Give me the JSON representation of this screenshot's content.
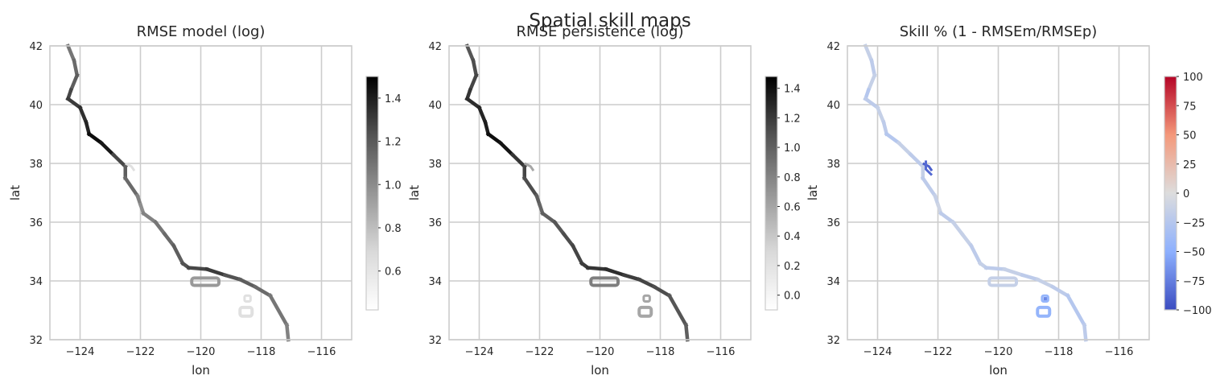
{
  "figure": {
    "title": "Spatial skill maps"
  },
  "chart_data": [
    {
      "type": "heatmap",
      "title": "RMSE model (log)",
      "xlabel": "lon",
      "ylabel": "lat",
      "xlim": [
        -125,
        -115
      ],
      "ylim": [
        32,
        42
      ],
      "xticks": [
        -124,
        -122,
        -120,
        -118,
        -116
      ],
      "xtick_labels": [
        "−124",
        "−122",
        "−120",
        "−118",
        "−116"
      ],
      "yticks": [
        32,
        34,
        36,
        38,
        40,
        42
      ],
      "ytick_labels": [
        "32",
        "34",
        "36",
        "38",
        "40",
        "42"
      ],
      "grid": true,
      "colormap": "Greys",
      "colorbar": {
        "vmin": 0.42,
        "vmax": 1.5,
        "ticks": [
          0.6,
          0.8,
          1.0,
          1.2,
          1.4
        ],
        "tick_labels": [
          "0.6",
          "0.8",
          "1.0",
          "1.2",
          "1.4"
        ]
      },
      "values": [
        1.0,
        1.05,
        1.1,
        1.2,
        1.25,
        1.3,
        1.35,
        1.45,
        1.4,
        1.2,
        1.1,
        1.05,
        0.95,
        0.9,
        0.95,
        1.0,
        1.05,
        1.1,
        1.15,
        1.2,
        1.25,
        1.15,
        1.1,
        1.05,
        1.0,
        0.95
      ],
      "islands": {
        "far": 0.55,
        "near": 0.85
      }
    },
    {
      "type": "heatmap",
      "title": "RMSE persistence (log)",
      "xlabel": "lon",
      "ylabel": "lat",
      "xlim": [
        -125,
        -115
      ],
      "ylim": [
        32,
        42
      ],
      "xticks": [
        -124,
        -122,
        -120,
        -118,
        -116
      ],
      "xtick_labels": [
        "−124",
        "−122",
        "−120",
        "−118",
        "−116"
      ],
      "yticks": [
        32,
        34,
        36,
        38,
        40,
        42
      ],
      "ytick_labels": [
        "32",
        "34",
        "36",
        "38",
        "40",
        "42"
      ],
      "grid": true,
      "colormap": "Greys",
      "colorbar": {
        "vmin": -0.1,
        "vmax": 1.48,
        "ticks": [
          0.0,
          0.2,
          0.4,
          0.6,
          0.8,
          1.0,
          1.2,
          1.4
        ],
        "tick_labels": [
          "0.0",
          "0.2",
          "0.4",
          "0.6",
          "0.8",
          "1.0",
          "1.2",
          "1.4"
        ]
      },
      "values": [
        0.95,
        1.0,
        1.05,
        1.15,
        1.2,
        1.25,
        1.3,
        1.4,
        1.35,
        1.15,
        1.05,
        1.0,
        0.9,
        0.85,
        0.9,
        0.95,
        1.0,
        1.05,
        1.1,
        1.15,
        1.2,
        1.1,
        1.05,
        1.0,
        0.95,
        0.9
      ],
      "islands": {
        "far": 0.45,
        "near": 0.7
      }
    },
    {
      "type": "heatmap",
      "title": "Skill % (1 - RMSEm/RMSEp)",
      "xlabel": "lon",
      "ylabel": "lat",
      "xlim": [
        -125,
        -115
      ],
      "ylim": [
        32,
        42
      ],
      "xticks": [
        -124,
        -122,
        -120,
        -118,
        -116
      ],
      "xtick_labels": [
        "−124",
        "−122",
        "−120",
        "−118",
        "−116"
      ],
      "yticks": [
        32,
        34,
        36,
        38,
        40,
        42
      ],
      "ytick_labels": [
        "32",
        "34",
        "36",
        "38",
        "40",
        "42"
      ],
      "grid": true,
      "colormap": "coolwarm",
      "colorbar": {
        "vmin": -100,
        "vmax": 100,
        "ticks": [
          -100,
          -75,
          -50,
          -25,
          0,
          25,
          50,
          75,
          100
        ],
        "tick_labels": [
          "−100",
          "−75",
          "−50",
          "−25",
          "0",
          "25",
          "50",
          "75",
          "100"
        ]
      },
      "values": [
        -15,
        -20,
        -15,
        -25,
        -20,
        -15,
        -20,
        -25,
        -15,
        -20,
        -15,
        -20,
        -15,
        -10,
        -20,
        -15,
        -15,
        -20,
        -15,
        -20,
        -15,
        -20,
        -15,
        -20,
        -25,
        -20
      ],
      "islands": {
        "far": -45,
        "near": -15
      },
      "hotspots": [
        -90,
        -85,
        -70
      ]
    }
  ]
}
